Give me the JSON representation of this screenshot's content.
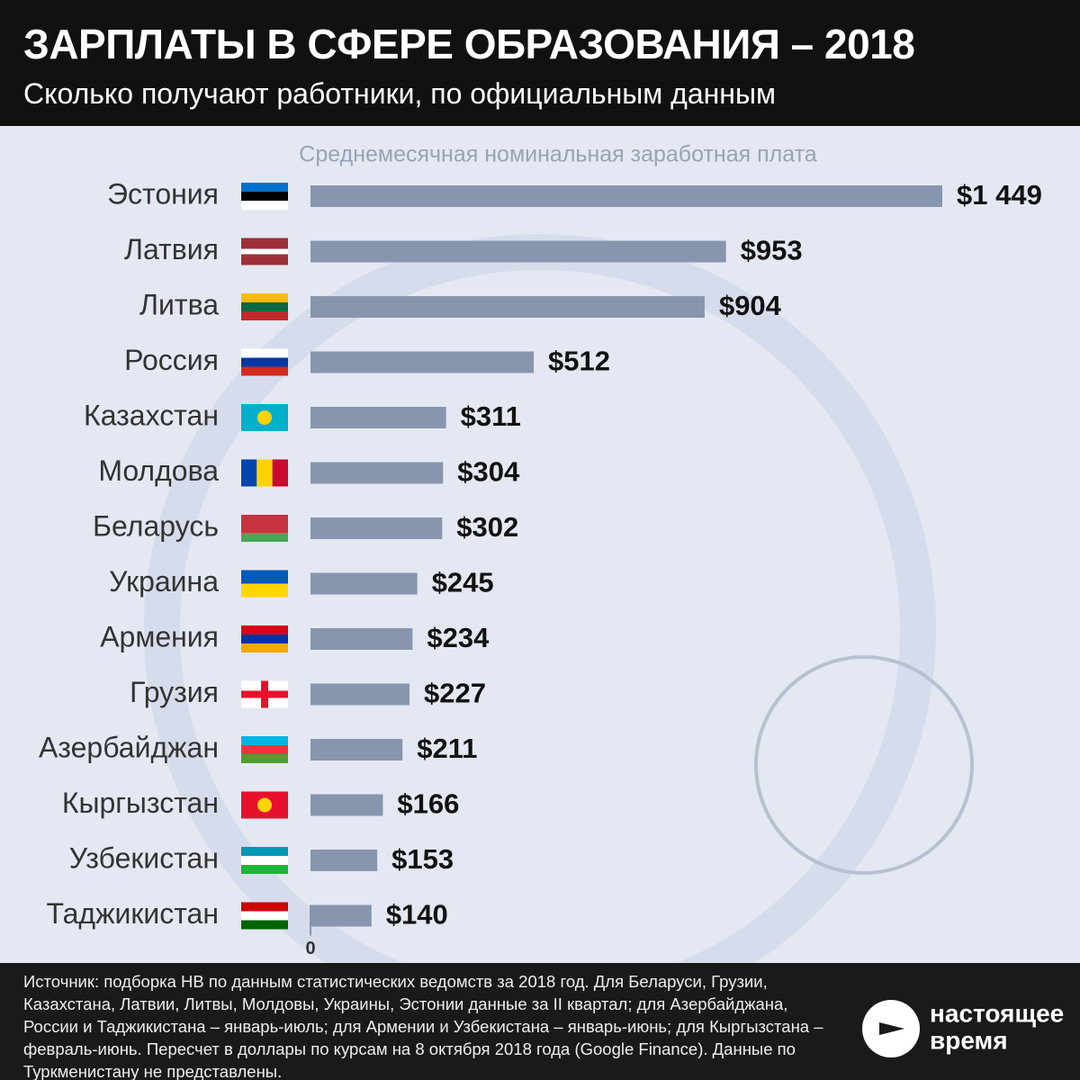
{
  "chart_data": {
    "type": "bar",
    "orientation": "horizontal",
    "title": "ЗАРПЛАТЫ В СФЕРЕ ОБРАЗОВАНИЯ – 2018",
    "subtitle": "Сколько получают работники, по официальным данным",
    "xlabel": "Среднемесячная номинальная заработная плата",
    "categories": [
      "Эстония",
      "Латвия",
      "Литва",
      "Россия",
      "Казахстан",
      "Молдова",
      "Беларусь",
      "Украина",
      "Армения",
      "Грузия",
      "Азербайджан",
      "Кыргызстан",
      "Узбекистан",
      "Таджикистан"
    ],
    "values": [
      1449,
      953,
      904,
      512,
      311,
      304,
      302,
      245,
      234,
      227,
      211,
      166,
      153,
      140
    ],
    "value_labels": [
      "$1 449",
      "$953",
      "$904",
      "$512",
      "$311",
      "$304",
      "$302",
      "$245",
      "$234",
      "$227",
      "$211",
      "$166",
      "$153",
      "$140"
    ],
    "color": "#8796ae",
    "xlim": [
      0,
      1449
    ],
    "xticks": [
      0
    ],
    "grid": false,
    "source": "Источник: подборка НВ по данным статистических ведомств за 2018 год. Для Беларуси, Грузии, Казахстана, Латвии, Литвы, Молдовы, Украины, Эстонии данные за II квартал; для Азербайджана, России и Таджикистана – январь-июль; для Армении и Узбекистана – январь-июнь; для Кыргызстана – февраль-июнь. Пересчет в доллары по курсам на 8 октября 2018 года (Google Finance). Данные по Туркменистану не представлены."
  },
  "logo": {
    "line1": "настоящее",
    "line2": "время"
  }
}
